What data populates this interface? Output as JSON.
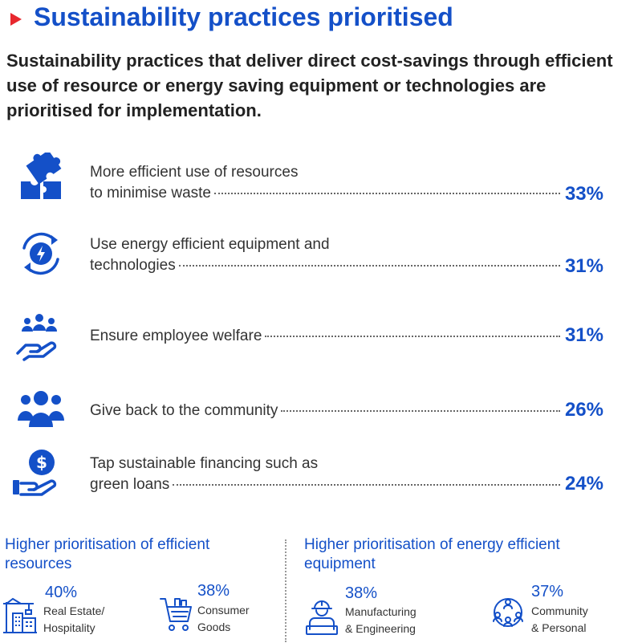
{
  "header": {
    "title": "Sustainability practices prioritised",
    "subtitle": "Sustainability practices that deliver direct cost-savings through efficient use of resource or energy saving equipment or technologies are prioritised for implementation."
  },
  "colors": {
    "brand_blue": "#1450c8",
    "marker_red": "#e8282e",
    "text_dark": "#222222"
  },
  "chart_data": {
    "type": "bar",
    "title": "Sustainability practices prioritised",
    "unit": "%",
    "categories": [
      "More efficient use of resources to minimise waste",
      "Use energy efficient equipment and technologies",
      "Ensure employee welfare",
      "Give back to the community",
      "Tap sustainable financing such as green loans"
    ],
    "values": [
      33,
      31,
      31,
      26,
      24
    ],
    "rows": [
      {
        "line1": "More efficient use of resources",
        "line2": "to minimise waste",
        "pct": "33%",
        "icon": "puzzle-icon"
      },
      {
        "line1": "Use energy efficient equipment and",
        "line2": "technologies",
        "pct": "31%",
        "icon": "energy-cycle-icon"
      },
      {
        "line1": "",
        "line2": "Ensure employee welfare",
        "pct": "31%",
        "icon": "hand-people-icon"
      },
      {
        "line1": "",
        "line2": "Give back to the community",
        "pct": "26%",
        "icon": "community-group-icon"
      },
      {
        "line1": "Tap sustainable financing such as",
        "line2": "green loans",
        "pct": "24%",
        "icon": "hand-coin-icon"
      }
    ]
  },
  "bottom": {
    "left": {
      "heading": "Higher prioritisation of efficient resources",
      "items": [
        {
          "pct": "40%",
          "label_line1": "Real Estate/",
          "label_line2": "Hospitality",
          "icon": "building-crane-icon"
        },
        {
          "pct": "38%",
          "label_line1": "Consumer",
          "label_line2": "Goods",
          "icon": "shopping-cart-icon"
        }
      ]
    },
    "right": {
      "heading": "Higher prioritisation of energy efficient equipment",
      "items": [
        {
          "pct": "38%",
          "label_line1": "Manufacturing",
          "label_line2": "& Engineering",
          "icon": "engineer-icon"
        },
        {
          "pct": "37%",
          "label_line1": "Community",
          "label_line2": "& Personal",
          "icon": "people-network-icon"
        }
      ]
    }
  }
}
